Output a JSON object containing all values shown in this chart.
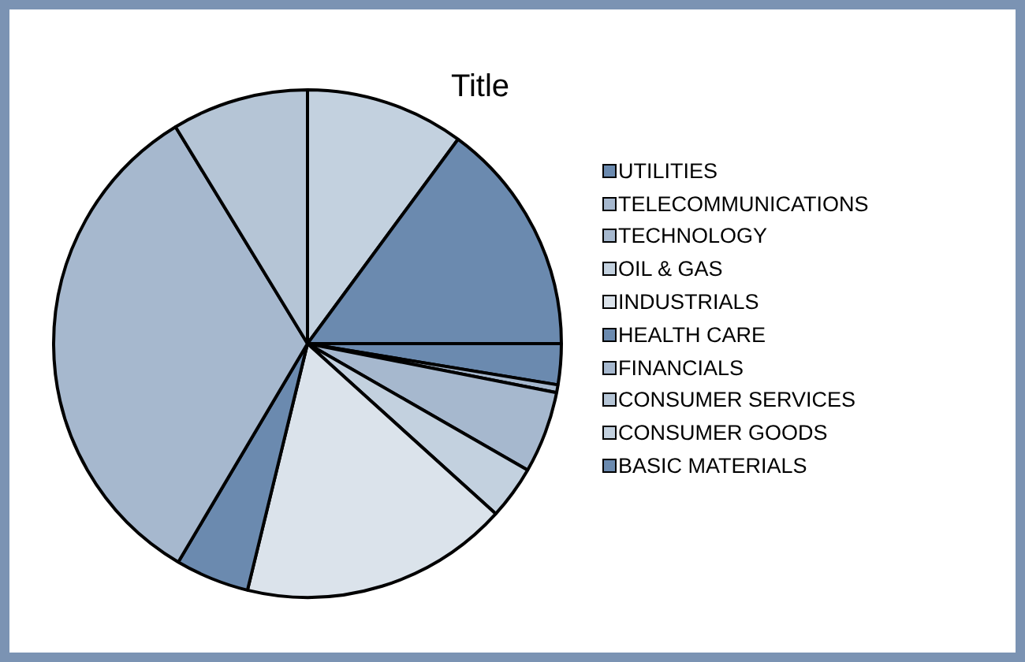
{
  "chart_data": {
    "type": "pie",
    "title": "Title",
    "legend": "right",
    "categories": [
      "UTILITIES",
      "TELECOMMUNICATIONS",
      "TECHNOLOGY",
      "OIL & GAS",
      "INDUSTRIALS",
      "HEALTH CARE",
      "FINANCIALS",
      "CONSUMER SERVICES",
      "CONSUMER GOODS",
      "BASIC MATERIALS"
    ],
    "values": [
      2.6,
      0.5,
      5.2,
      3.4,
      17.1,
      4.7,
      32.8,
      8.7,
      10.1,
      14.9
    ],
    "colors": [
      "#6b8aaf",
      "#a6b8ce",
      "#a6b8ce",
      "#c3d1df",
      "#dbe3eb",
      "#6b8aaf",
      "#a6b8ce",
      "#b5c5d6",
      "#c3d1df",
      "#6b8aaf"
    ]
  }
}
